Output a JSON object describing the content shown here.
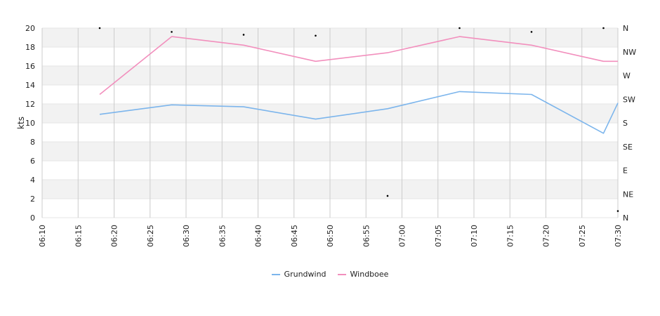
{
  "chart_data": {
    "type": "line",
    "ylabel": "kts",
    "ylim": [
      0,
      20
    ],
    "y_ticks": [
      "0",
      "2",
      "4",
      "6",
      "8",
      "10",
      "12",
      "14",
      "16",
      "18",
      "20"
    ],
    "y2_ticks": [
      "N",
      "NE",
      "E",
      "SE",
      "S",
      "SW",
      "W",
      "NW",
      "N"
    ],
    "x_ticks": [
      "06:10",
      "06:15",
      "06:20",
      "06:25",
      "06:30",
      "06:35",
      "06:40",
      "06:45",
      "06:50",
      "06:55",
      "07:00",
      "07:05",
      "07:10",
      "07:15",
      "07:20",
      "07:25",
      "07:30"
    ],
    "x": [
      "06:18",
      "06:28",
      "06:38",
      "06:48",
      "06:58",
      "07:08",
      "07:18",
      "07:28",
      "07:30"
    ],
    "series": [
      {
        "name": "Grundwind",
        "color": "#7cb5ec",
        "values": [
          10.9,
          11.9,
          11.7,
          10.4,
          11.5,
          13.3,
          13.0,
          8.9,
          12.1
        ]
      },
      {
        "name": "Windboee",
        "color": "#f28fbd",
        "values": [
          13.0,
          19.1,
          18.2,
          16.5,
          17.4,
          19.1,
          18.2,
          16.5,
          16.5
        ]
      }
    ],
    "direction_markers": [
      {
        "x": "06:18",
        "y": 20.0
      },
      {
        "x": "06:28",
        "y": 19.6
      },
      {
        "x": "06:38",
        "y": 19.3
      },
      {
        "x": "06:48",
        "y": 19.2
      },
      {
        "x": "06:58",
        "y": 2.3
      },
      {
        "x": "07:08",
        "y": 20.0
      },
      {
        "x": "07:18",
        "y": 19.6
      },
      {
        "x": "07:28",
        "y": 20.0
      },
      {
        "x": "07:30",
        "y": 0.7
      }
    ],
    "grid": true,
    "legend": "bottom-center"
  }
}
